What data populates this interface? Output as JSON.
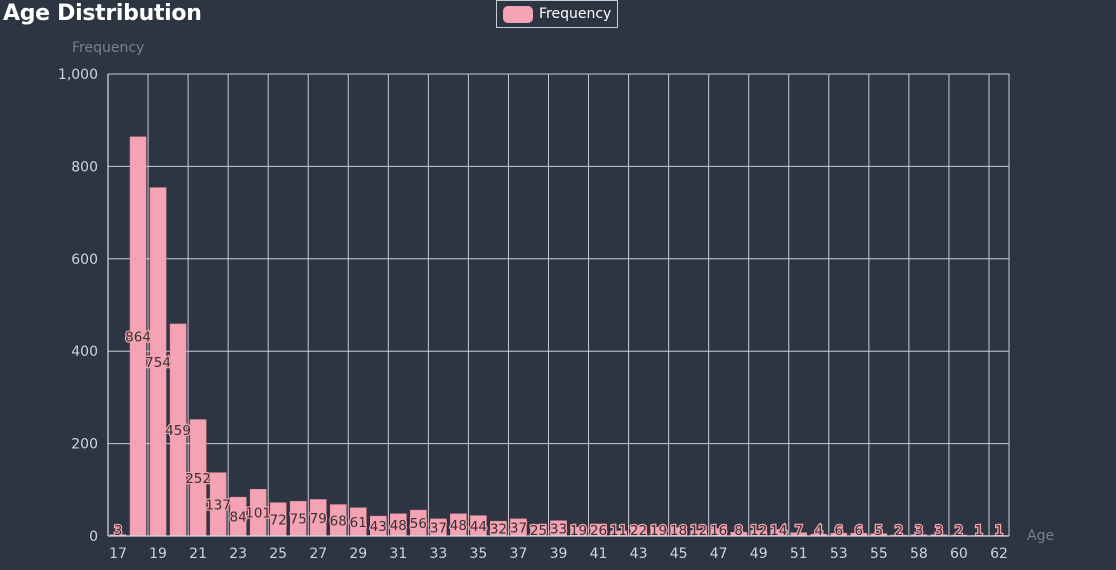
{
  "chart_data": {
    "type": "bar",
    "title": "Age Distribution",
    "xlabel": "Age",
    "ylabel": "Frequency",
    "legend": {
      "entries": [
        "Frequency"
      ],
      "placement": "top-center"
    },
    "ylim": [
      0,
      1000
    ],
    "y_ticks": [
      0,
      200,
      400,
      600,
      800,
      1000
    ],
    "y_tick_labels": [
      "0",
      "200",
      "400",
      "600",
      "800",
      "1,000"
    ],
    "grid": true,
    "categories": [
      "17",
      "18",
      "19",
      "20",
      "21",
      "22",
      "23",
      "24",
      "25",
      "26",
      "27",
      "28",
      "29",
      "30",
      "31",
      "32",
      "33",
      "34",
      "35",
      "36",
      "37",
      "38",
      "39",
      "40",
      "41",
      "42",
      "43",
      "44",
      "45",
      "46",
      "47",
      "48",
      "49",
      "50",
      "51",
      "52",
      "53",
      "54",
      "55",
      "57",
      "58",
      "59",
      "60",
      "61",
      "62"
    ],
    "x_tick_labels": [
      "17",
      "19",
      "21",
      "23",
      "25",
      "27",
      "29",
      "31",
      "33",
      "35",
      "37",
      "39",
      "41",
      "43",
      "45",
      "47",
      "49",
      "51",
      "53",
      "55",
      "58",
      "60",
      "62"
    ],
    "series": [
      {
        "name": "Frequency",
        "color": "#f4a3b4",
        "values": [
          3,
          864,
          754,
          459,
          252,
          137,
          84,
          101,
          72,
          75,
          79,
          68,
          61,
          43,
          48,
          56,
          37,
          48,
          44,
          32,
          37,
          25,
          33,
          19,
          26,
          11,
          22,
          19,
          18,
          12,
          16,
          8,
          12,
          14,
          7,
          4,
          6,
          6,
          5,
          2,
          3,
          3,
          2,
          1,
          1
        ]
      }
    ],
    "data_labels": [
      "3",
      "864",
      "754",
      "459",
      "252",
      "137",
      "84",
      "101",
      "72",
      "75",
      "79",
      "68",
      "61",
      "43",
      "48",
      "56",
      "37",
      "48",
      "44",
      "32",
      "37",
      "25",
      "33",
      "19",
      "26",
      "11",
      "22",
      "19",
      "18",
      "12",
      "16",
      "8",
      "12",
      "14",
      "7",
      "4",
      "6",
      "6",
      "5",
      "2",
      "3",
      "3",
      "2",
      "1",
      "1"
    ]
  }
}
